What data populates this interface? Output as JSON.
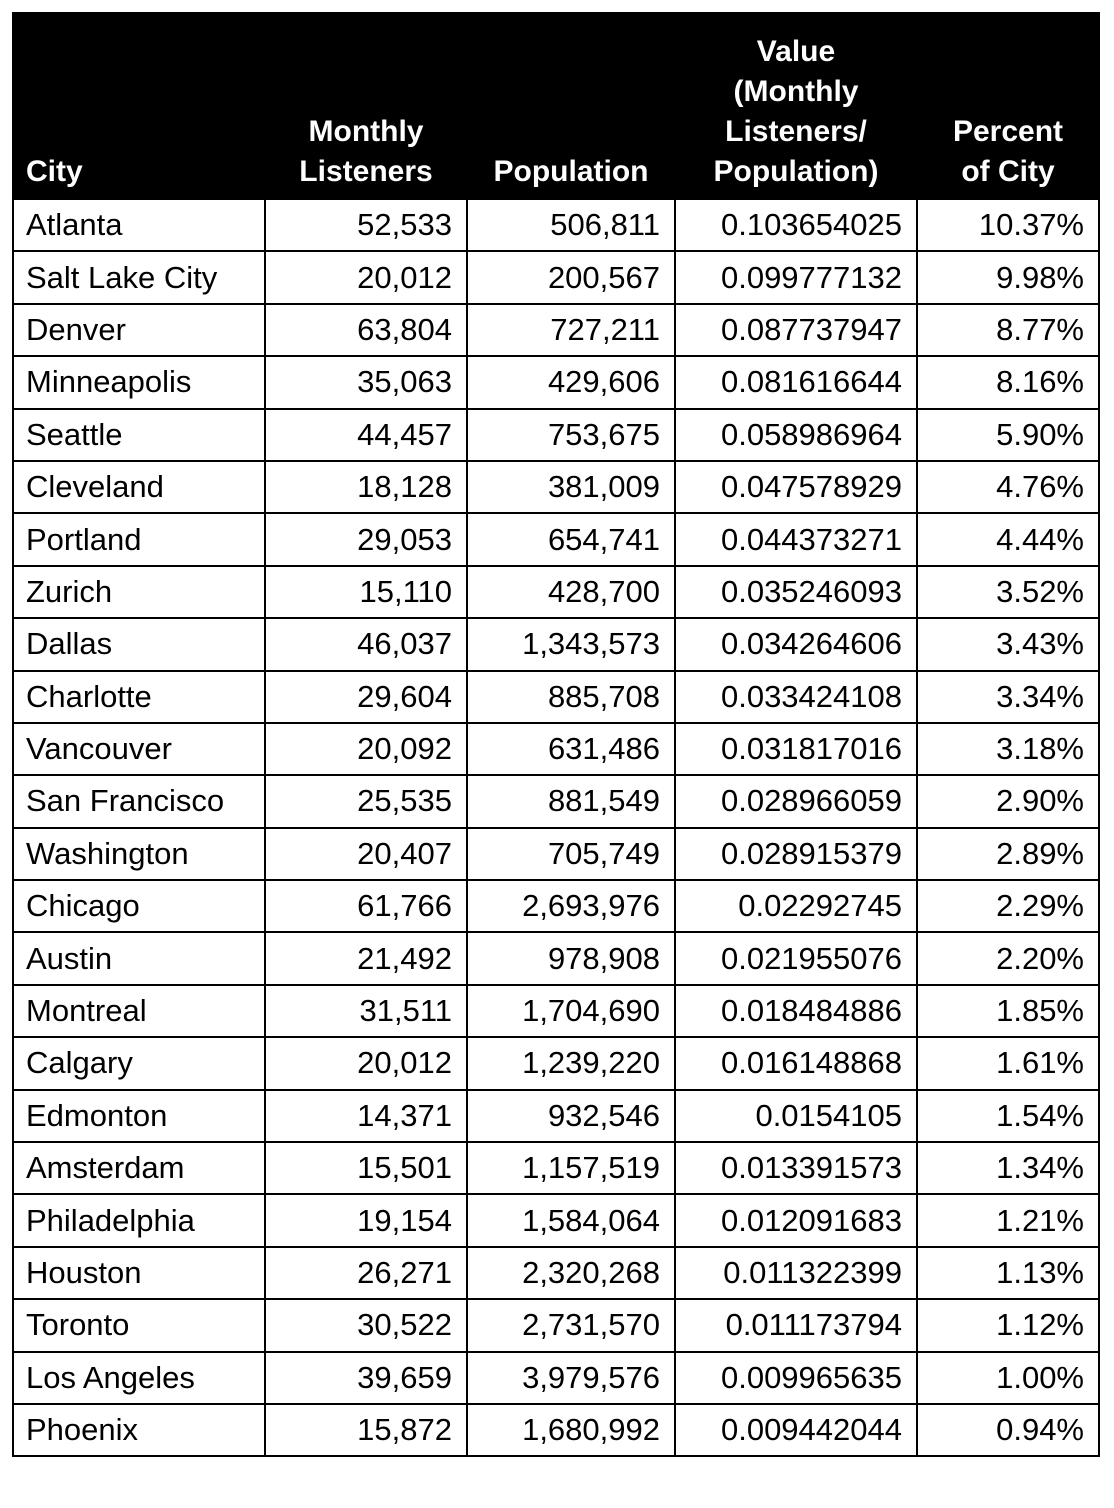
{
  "table": {
    "header": [
      [
        "City"
      ],
      [
        "Monthly",
        "Listeners"
      ],
      [
        "Population"
      ],
      [
        "Value",
        "(Monthly",
        "Listeners/",
        "Population)"
      ],
      [
        "Percent",
        "of City"
      ]
    ],
    "rows": [
      [
        "Atlanta",
        "52,533",
        "506,811",
        "0.103654025",
        "10.37%"
      ],
      [
        "Salt Lake City",
        "20,012",
        "200,567",
        "0.099777132",
        "9.98%"
      ],
      [
        "Denver",
        "63,804",
        "727,211",
        "0.087737947",
        "8.77%"
      ],
      [
        "Minneapolis",
        "35,063",
        "429,606",
        "0.081616644",
        "8.16%"
      ],
      [
        "Seattle",
        "44,457",
        "753,675",
        "0.058986964",
        "5.90%"
      ],
      [
        "Cleveland",
        "18,128",
        "381,009",
        "0.047578929",
        "4.76%"
      ],
      [
        "Portland",
        "29,053",
        "654,741",
        "0.044373271",
        "4.44%"
      ],
      [
        "Zurich",
        "15,110",
        "428,700",
        "0.035246093",
        "3.52%"
      ],
      [
        "Dallas",
        "46,037",
        "1,343,573",
        "0.034264606",
        "3.43%"
      ],
      [
        "Charlotte",
        "29,604",
        "885,708",
        "0.033424108",
        "3.34%"
      ],
      [
        "Vancouver",
        "20,092",
        "631,486",
        "0.031817016",
        "3.18%"
      ],
      [
        "San Francisco",
        "25,535",
        "881,549",
        "0.028966059",
        "2.90%"
      ],
      [
        "Washington",
        "20,407",
        "705,749",
        "0.028915379",
        "2.89%"
      ],
      [
        "Chicago",
        "61,766",
        "2,693,976",
        "0.02292745",
        "2.29%"
      ],
      [
        "Austin",
        "21,492",
        "978,908",
        "0.021955076",
        "2.20%"
      ],
      [
        "Montreal",
        "31,511",
        "1,704,690",
        "0.018484886",
        "1.85%"
      ],
      [
        "Calgary",
        "20,012",
        "1,239,220",
        "0.016148868",
        "1.61%"
      ],
      [
        "Edmonton",
        "14,371",
        "932,546",
        "0.0154105",
        "1.54%"
      ],
      [
        "Amsterdam",
        "15,501",
        "1,157,519",
        "0.013391573",
        "1.34%"
      ],
      [
        "Philadelphia",
        "19,154",
        "1,584,064",
        "0.012091683",
        "1.21%"
      ],
      [
        "Houston",
        "26,271",
        "2,320,268",
        "0.011322399",
        "1.13%"
      ],
      [
        "Toronto",
        "30,522",
        "2,731,570",
        "0.011173794",
        "1.12%"
      ],
      [
        "Los Angeles",
        "39,659",
        "3,979,576",
        "0.009965635",
        "1.00%"
      ],
      [
        "Phoenix",
        "15,872",
        "1,680,992",
        "0.009442044",
        "0.94%"
      ]
    ]
  }
}
